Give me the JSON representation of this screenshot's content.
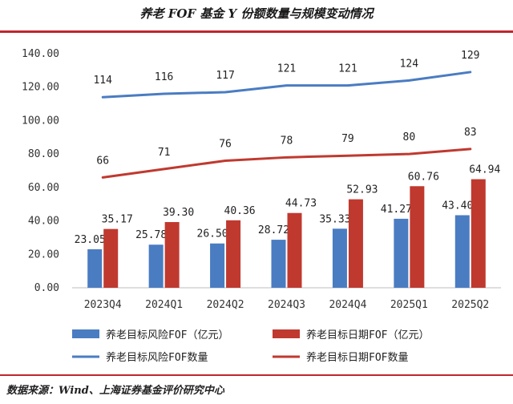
{
  "title": "养老 FOF 基金 Y 份额数量与规模变动情况",
  "source": "数据来源：Wind、上海证券基金评价研究中心",
  "colors": {
    "blue": "#4a7cc2",
    "red": "#c0392f",
    "accent": "#c0262d"
  },
  "chart_data": {
    "type": "bar",
    "categories": [
      "2023Q4",
      "2024Q1",
      "2024Q2",
      "2024Q3",
      "2024Q4",
      "2025Q1",
      "2025Q2"
    ],
    "ylim": [
      0,
      140
    ],
    "yticks": [
      "0.00",
      "20.00",
      "40.00",
      "60.00",
      "80.00",
      "100.00",
      "120.00",
      "140.00"
    ],
    "bar_series": [
      {
        "name": "养老目标风险FOF（亿元）",
        "color": "#4a7cc2",
        "values": [
          23.05,
          25.78,
          26.5,
          28.72,
          35.33,
          41.27,
          43.4
        ],
        "labels": [
          "23.05",
          "25.78",
          "26.50",
          "28.72",
          "35.33",
          "41.27",
          "43.40"
        ]
      },
      {
        "name": "养老目标日期FOF（亿元）",
        "color": "#c0392f",
        "values": [
          35.17,
          39.3,
          40.36,
          44.73,
          52.93,
          60.76,
          64.94
        ],
        "labels": [
          "35.17",
          "39.30",
          "40.36",
          "44.73",
          "52.93",
          "60.76",
          "64.94"
        ]
      }
    ],
    "line_series": [
      {
        "name": "养老目标风险FOF数量",
        "color": "#4a7cc2",
        "values": [
          114,
          116,
          117,
          121,
          121,
          124,
          129
        ],
        "labels": [
          "114",
          "116",
          "117",
          "121",
          "121",
          "124",
          "129"
        ]
      },
      {
        "name": "养老目标日期FOF数量",
        "color": "#c0392f",
        "values": [
          66,
          71,
          76,
          78,
          79,
          80,
          83
        ],
        "labels": [
          "66",
          "71",
          "76",
          "78",
          "79",
          "80",
          "83"
        ]
      }
    ]
  }
}
